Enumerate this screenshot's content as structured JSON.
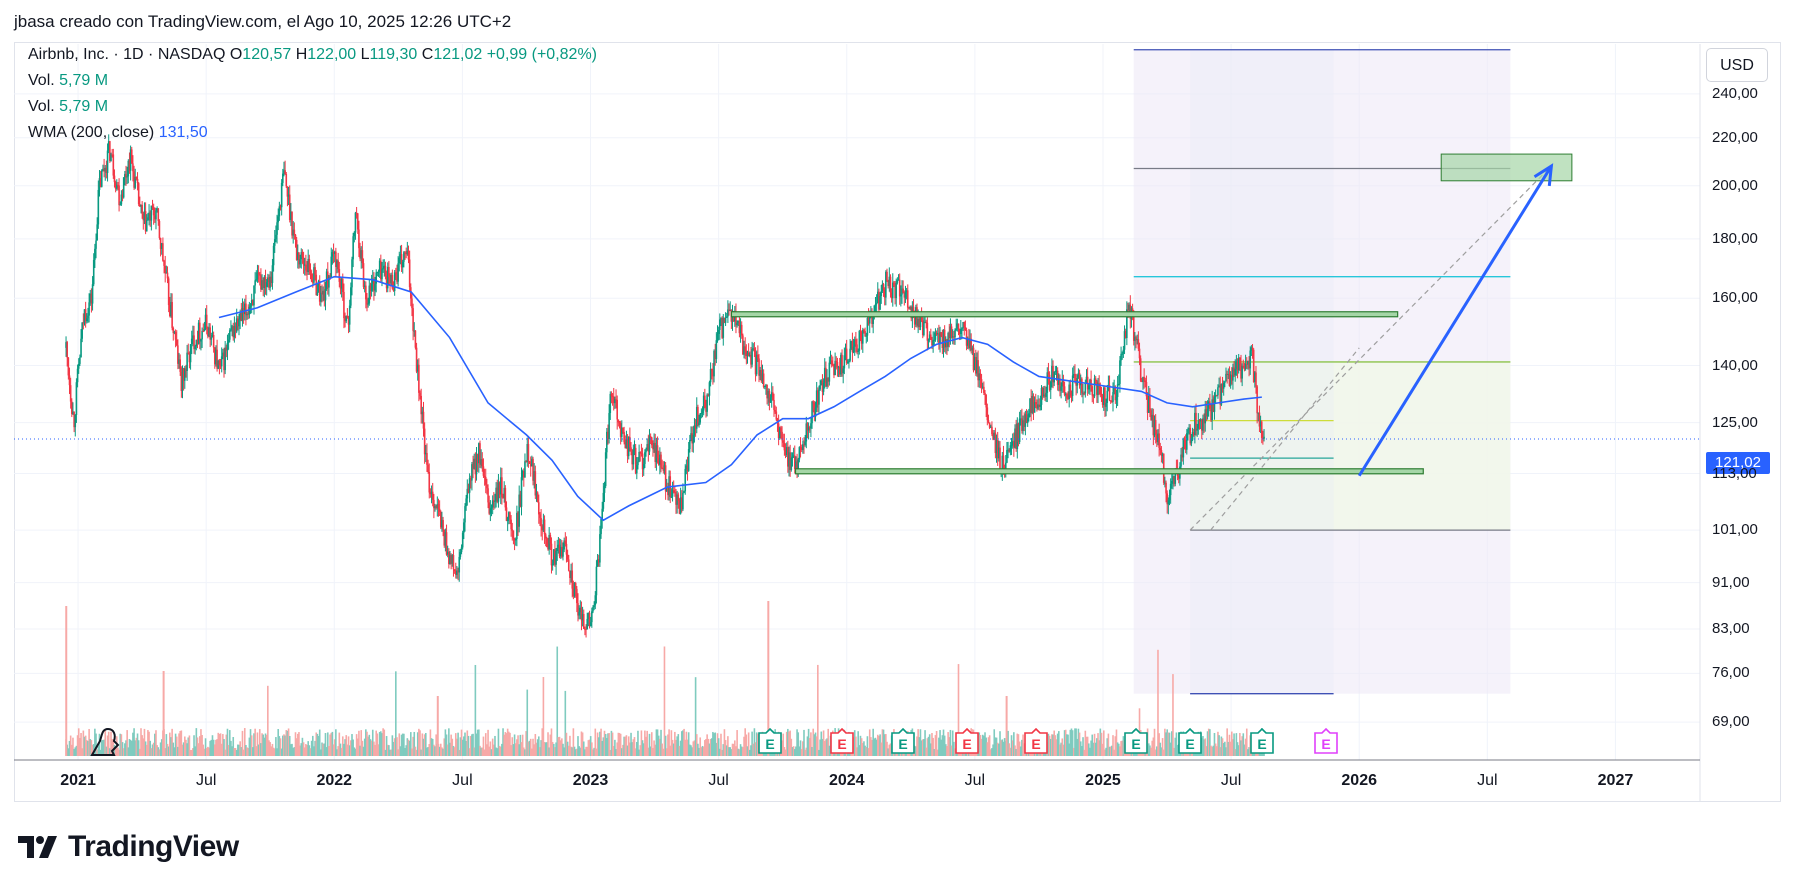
{
  "header": {
    "text": "jbasa creado con TradingView.com, el Ago 10, 2025 12:26 UTC+2"
  },
  "legend": {
    "symbol": "Airbnb, Inc. · 1D · NASDAQ",
    "ohlc": [
      {
        "label": "O",
        "value": "120,57"
      },
      {
        "label": "H",
        "value": "122,00"
      },
      {
        "label": "L",
        "value": "119,30"
      },
      {
        "label": "C",
        "value": "121,02"
      }
    ],
    "change": "+0,99 (+0,82%)",
    "vol1_label": "Vol.",
    "vol1_value": "5,79 M",
    "vol2_label": "Vol.",
    "vol2_value": "5,79 M",
    "wma_label": "WMA (200, close)",
    "wma_value": "131,50"
  },
  "currency": "USD",
  "last_price": "121,02",
  "footer": {
    "brand": "TradingView"
  },
  "earnings_badges": {
    "positions_date": [
      2023.7,
      2023.98,
      2024.22,
      2024.47,
      2024.74,
      2025.13,
      2025.34,
      2025.62,
      2025.87
    ],
    "kinds": [
      "E",
      "E",
      "E",
      "E",
      "E",
      "E",
      "E",
      "E",
      "E"
    ],
    "colors": [
      "#089981",
      "#f23645",
      "#089981",
      "#f23645",
      "#f23645",
      "#089981",
      "#089981",
      "#089981",
      "#e040fb"
    ]
  },
  "colors": {
    "up": "#089981",
    "down": "#f23645",
    "wma": "#2962ff",
    "zone": "#4caf50",
    "proj": "#2962ff"
  },
  "chart_data": {
    "type": "candlestick",
    "title": "Airbnb, Inc. · 1D · NASDAQ",
    "y_scale": "log",
    "ylim": [
      64,
      265
    ],
    "xlim": [
      "2020-10-01",
      "2027-05-01"
    ],
    "y_ticks": [
      "240,00",
      "220,00",
      "200,00",
      "180,00",
      "160,00",
      "140,00",
      "125,00",
      "113,00",
      "101,00",
      "91,00",
      "83,00",
      "76,00",
      "69,00"
    ],
    "y_tick_values": [
      240,
      220,
      200,
      180,
      160,
      140,
      125,
      113,
      101,
      91,
      83,
      76,
      69
    ],
    "x_ticks": [
      {
        "label": "2021",
        "date": 2021.0,
        "year": true
      },
      {
        "label": "Jul",
        "date": 2021.5,
        "year": false
      },
      {
        "label": "2022",
        "date": 2022.0,
        "year": true
      },
      {
        "label": "Jul",
        "date": 2022.5,
        "year": false
      },
      {
        "label": "2023",
        "date": 2023.0,
        "year": true
      },
      {
        "label": "Jul",
        "date": 2023.5,
        "year": false
      },
      {
        "label": "2024",
        "date": 2024.0,
        "year": true
      },
      {
        "label": "Jul",
        "date": 2024.5,
        "year": false
      },
      {
        "label": "2025",
        "date": 2025.0,
        "year": true
      },
      {
        "label": "Jul",
        "date": 2025.5,
        "year": false
      },
      {
        "label": "2026",
        "date": 2026.0,
        "year": true
      },
      {
        "label": "Jul",
        "date": 2026.5,
        "year": false
      },
      {
        "label": "2027",
        "date": 2027.0,
        "year": true
      }
    ],
    "price_path": [
      [
        2020.95,
        145
      ],
      [
        2020.98,
        125
      ],
      [
        2021.02,
        155
      ],
      [
        2021.05,
        160
      ],
      [
        2021.08,
        200
      ],
      [
        2021.12,
        215
      ],
      [
        2021.16,
        195
      ],
      [
        2021.2,
        212
      ],
      [
        2021.25,
        185
      ],
      [
        2021.3,
        190
      ],
      [
        2021.35,
        160
      ],
      [
        2021.4,
        135
      ],
      [
        2021.45,
        148
      ],
      [
        2021.5,
        152
      ],
      [
        2021.55,
        138
      ],
      [
        2021.6,
        150
      ],
      [
        2021.65,
        155
      ],
      [
        2021.7,
        165
      ],
      [
        2021.75,
        168
      ],
      [
        2021.8,
        205
      ],
      [
        2021.85,
        175
      ],
      [
        2021.9,
        170
      ],
      [
        2021.95,
        160
      ],
      [
        2022.0,
        175
      ],
      [
        2022.05,
        150
      ],
      [
        2022.08,
        190
      ],
      [
        2022.12,
        160
      ],
      [
        2022.18,
        170
      ],
      [
        2022.22,
        165
      ],
      [
        2022.28,
        175
      ],
      [
        2022.32,
        140
      ],
      [
        2022.36,
        112
      ],
      [
        2022.4,
        105
      ],
      [
        2022.45,
        95
      ],
      [
        2022.48,
        92
      ],
      [
        2022.52,
        110
      ],
      [
        2022.56,
        118
      ],
      [
        2022.6,
        105
      ],
      [
        2022.65,
        110
      ],
      [
        2022.7,
        98
      ],
      [
        2022.75,
        120
      ],
      [
        2022.8,
        105
      ],
      [
        2022.85,
        95
      ],
      [
        2022.9,
        98
      ],
      [
        2022.95,
        85
      ],
      [
        2023.0,
        84
      ],
      [
        2023.03,
        96
      ],
      [
        2023.08,
        135
      ],
      [
        2023.12,
        122
      ],
      [
        2023.18,
        115
      ],
      [
        2023.24,
        120
      ],
      [
        2023.3,
        110
      ],
      [
        2023.35,
        105
      ],
      [
        2023.4,
        125
      ],
      [
        2023.45,
        130
      ],
      [
        2023.5,
        150
      ],
      [
        2023.55,
        155
      ],
      [
        2023.6,
        145
      ],
      [
        2023.65,
        140
      ],
      [
        2023.7,
        132
      ],
      [
        2023.75,
        118
      ],
      [
        2023.8,
        115
      ],
      [
        2023.85,
        125
      ],
      [
        2023.9,
        135
      ],
      [
        2023.95,
        140
      ],
      [
        2024.0,
        142
      ],
      [
        2024.05,
        148
      ],
      [
        2024.1,
        155
      ],
      [
        2024.15,
        165
      ],
      [
        2024.2,
        162
      ],
      [
        2024.25,
        157
      ],
      [
        2024.3,
        150
      ],
      [
        2024.35,
        147
      ],
      [
        2024.4,
        148
      ],
      [
        2024.45,
        150
      ],
      [
        2024.5,
        140
      ],
      [
        2024.55,
        125
      ],
      [
        2024.6,
        114
      ],
      [
        2024.65,
        120
      ],
      [
        2024.7,
        128
      ],
      [
        2024.75,
        132
      ],
      [
        2024.8,
        137
      ],
      [
        2024.85,
        133
      ],
      [
        2024.9,
        135
      ],
      [
        2024.95,
        134
      ],
      [
        2025.0,
        132
      ],
      [
        2025.05,
        133
      ],
      [
        2025.1,
        158
      ],
      [
        2025.14,
        140
      ],
      [
        2025.18,
        128
      ],
      [
        2025.22,
        118
      ],
      [
        2025.25,
        108
      ],
      [
        2025.28,
        112
      ],
      [
        2025.32,
        120
      ],
      [
        2025.36,
        125
      ],
      [
        2025.42,
        128
      ],
      [
        2025.48,
        135
      ],
      [
        2025.54,
        140
      ],
      [
        2025.58,
        142
      ],
      [
        2025.6,
        128
      ],
      [
        2025.62,
        122
      ],
      [
        2025.63,
        121
      ]
    ],
    "wma_path": [
      [
        2021.55,
        154
      ],
      [
        2021.7,
        157
      ],
      [
        2021.85,
        162
      ],
      [
        2022.0,
        167
      ],
      [
        2022.15,
        166
      ],
      [
        2022.3,
        162
      ],
      [
        2022.45,
        148
      ],
      [
        2022.6,
        130
      ],
      [
        2022.75,
        122
      ],
      [
        2022.85,
        116
      ],
      [
        2022.95,
        108
      ],
      [
        2023.05,
        103
      ],
      [
        2023.15,
        106
      ],
      [
        2023.3,
        110
      ],
      [
        2023.45,
        111
      ],
      [
        2023.55,
        115
      ],
      [
        2023.65,
        122
      ],
      [
        2023.75,
        126
      ],
      [
        2023.85,
        126
      ],
      [
        2023.95,
        129
      ],
      [
        2024.05,
        133
      ],
      [
        2024.15,
        137
      ],
      [
        2024.25,
        142
      ],
      [
        2024.35,
        146
      ],
      [
        2024.45,
        148
      ],
      [
        2024.55,
        146
      ],
      [
        2024.65,
        141
      ],
      [
        2024.75,
        137
      ],
      [
        2024.85,
        136
      ],
      [
        2024.95,
        135
      ],
      [
        2025.05,
        134
      ],
      [
        2025.15,
        133
      ],
      [
        2025.25,
        130
      ],
      [
        2025.35,
        129
      ],
      [
        2025.45,
        130
      ],
      [
        2025.55,
        131
      ],
      [
        2025.62,
        131.5
      ]
    ],
    "zones": [
      {
        "name": "resistance",
        "from": 2023.55,
        "to": 2026.15,
        "price": 155
      },
      {
        "name": "support",
        "from": 2023.8,
        "to": 2026.25,
        "price": 113.5
      }
    ],
    "target_box": {
      "from": 2026.32,
      "to": 2026.83,
      "low": 202,
      "high": 213
    },
    "projection_arrow": {
      "from": [
        2026.0,
        112.5
      ],
      "to": [
        2026.75,
        208
      ]
    },
    "dashed_channel": [
      {
        "from": [
          2025.34,
          101
        ],
        "to": [
          2026.75,
          208
        ]
      },
      {
        "from": [
          2025.42,
          101
        ],
        "to": [
          2026.0,
          145
        ]
      }
    ],
    "fib_lines": [
      {
        "price": 167,
        "from": 2025.12,
        "to": 2026.59,
        "color": "#26c6da"
      },
      {
        "price": 141,
        "from": 2025.12,
        "to": 2026.59,
        "color": "#8bc34a"
      },
      {
        "price": 125.5,
        "from": 2025.34,
        "to": 2025.9,
        "color": "#cddc39"
      },
      {
        "price": 116.5,
        "from": 2025.34,
        "to": 2025.9,
        "color": "#26a69a"
      },
      {
        "price": 101,
        "from": 2025.34,
        "to": 2026.59,
        "color": "#787b86"
      },
      {
        "price": 207,
        "from": 2025.12,
        "to": 2026.59,
        "color": "#787b86"
      }
    ],
    "blue_lines": [
      {
        "price": 262,
        "from": 2025.12,
        "to": 2026.59
      },
      {
        "price": 73,
        "from": 2025.34,
        "to": 2025.9
      }
    ]
  }
}
